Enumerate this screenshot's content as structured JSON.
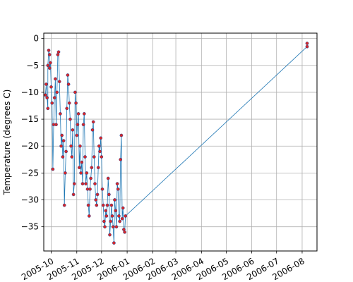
{
  "chart_data": {
    "type": "line",
    "title": "",
    "xlabel": "",
    "ylabel": "Temperature (degrees C)",
    "x_type": "date",
    "xlim": [
      "2005-09-22",
      "2006-08-19"
    ],
    "ylim": [
      -39.5,
      1
    ],
    "x_ticks": [
      "2005-10",
      "2005-11",
      "2005-12",
      "2006-01",
      "2006-02",
      "2006-03",
      "2006-04",
      "2006-05",
      "2006-06",
      "2006-07",
      "2006-08"
    ],
    "y_ticks": [
      0,
      -5,
      -10,
      -15,
      -20,
      -25,
      -30,
      -35
    ],
    "grid": true,
    "legend": "none",
    "colors": {
      "line": "#1f77b4",
      "marker_edge": "#1f3a8f",
      "marker_face": "#d62728",
      "grid": "#b0b0b0"
    },
    "series": [
      {
        "x": [
          "2005-09-24",
          "2005-09-25",
          "2005-09-26",
          "2005-09-27",
          "2005-09-27",
          "2005-09-28",
          "2005-09-29",
          "2005-09-29",
          "2005-09-30",
          "2005-10-01",
          "2005-10-02",
          "2005-10-03",
          "2005-10-04",
          "2005-10-05",
          "2005-10-06",
          "2005-10-07",
          "2005-10-08",
          "2005-10-09",
          "2005-10-10",
          "2005-10-11",
          "2005-10-12",
          "2005-10-13",
          "2005-10-14",
          "2005-10-15",
          "2005-10-16",
          "2005-10-17",
          "2005-10-18",
          "2005-10-19",
          "2005-10-20",
          "2005-10-21",
          "2005-10-22",
          "2005-10-23",
          "2005-10-24",
          "2005-10-25",
          "2005-10-26",
          "2005-10-27",
          "2005-10-28",
          "2005-10-29",
          "2005-10-30",
          "2005-10-31",
          "2005-11-01",
          "2005-11-02",
          "2005-11-03",
          "2005-11-04",
          "2005-11-05",
          "2005-11-06",
          "2005-11-07",
          "2005-11-08",
          "2005-11-09",
          "2005-11-10",
          "2005-11-11",
          "2005-11-12",
          "2005-11-13",
          "2005-11-14",
          "2005-11-15",
          "2005-11-16",
          "2005-11-17",
          "2005-11-18",
          "2005-11-19",
          "2005-11-20",
          "2005-11-21",
          "2005-11-22",
          "2005-11-23",
          "2005-11-24",
          "2005-11-25",
          "2005-11-26",
          "2005-11-27",
          "2005-11-28",
          "2005-11-29",
          "2005-11-30",
          "2005-12-01",
          "2005-12-02",
          "2005-12-03",
          "2005-12-04",
          "2005-12-05",
          "2005-12-06",
          "2005-12-07",
          "2005-12-08",
          "2005-12-09",
          "2005-12-10",
          "2005-12-11",
          "2005-12-12",
          "2005-12-13",
          "2005-12-14",
          "2005-12-15",
          "2005-12-16",
          "2005-12-17",
          "2005-12-18",
          "2005-12-19",
          "2005-12-20",
          "2005-12-21",
          "2005-12-22",
          "2005-12-23",
          "2005-12-24",
          "2005-12-25",
          "2005-12-26",
          "2005-12-27",
          "2005-12-28",
          "2005-12-29",
          "2005-12-30",
          "2006-08-07",
          "2006-08-07"
        ],
        "y": [
          -10.5,
          -8.5,
          -11,
          -13,
          -5,
          -2.2,
          -3,
          -5.5,
          -4.5,
          -9,
          -12,
          -24.3,
          -16,
          -11,
          -7.5,
          -16,
          -10,
          -3,
          -2.5,
          -8,
          -14,
          -20,
          -18,
          -22,
          -19,
          -31,
          -25,
          -21,
          -13,
          -6.8,
          -8.5,
          -12,
          -15,
          -20,
          -22,
          -17,
          -29,
          -27,
          -10,
          -12,
          -18,
          -16,
          -14,
          -24,
          -20,
          -25,
          -23,
          -27,
          -16,
          -14,
          -22,
          -27,
          -25,
          -28,
          -31,
          -33,
          -28,
          -26,
          -24,
          -17,
          -15.5,
          -22,
          -27,
          -30,
          -31,
          -29,
          -24,
          -20,
          -21,
          -18.5,
          -22,
          -28,
          -31,
          -34,
          -35,
          -32,
          -33,
          -31,
          -26,
          -29,
          -36.5,
          -34,
          -31,
          -33,
          -35,
          -38,
          -30,
          -32,
          -35,
          -27,
          -28,
          -33,
          -34,
          -22.5,
          -18,
          -33.5,
          -31.5,
          -35.5,
          -36,
          -33,
          -1.5,
          -0.9
        ]
      }
    ]
  }
}
